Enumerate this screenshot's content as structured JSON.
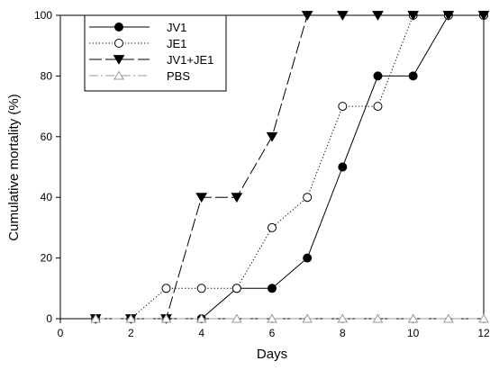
{
  "chart_data": {
    "type": "line",
    "title": "",
    "xlabel": "Days",
    "ylabel": "Cumulative mortality (%)",
    "xlim": [
      0,
      12
    ],
    "ylim": [
      0,
      100
    ],
    "xticks": [
      0,
      2,
      4,
      6,
      8,
      10,
      12
    ],
    "yticks": [
      0,
      20,
      40,
      60,
      80,
      100
    ],
    "grid": false,
    "legend_position": "top-left",
    "x": [
      1,
      2,
      3,
      4,
      5,
      6,
      7,
      8,
      9,
      10,
      11,
      12
    ],
    "series": [
      {
        "name": "JV1",
        "marker": "filled-circle",
        "line_style": "solid",
        "color": "#000000",
        "values": [
          0,
          0,
          0,
          0,
          10,
          10,
          20,
          50,
          80,
          80,
          100,
          100
        ]
      },
      {
        "name": "JE1",
        "marker": "open-circle",
        "line_style": "dotted",
        "color": "#000000",
        "values": [
          0,
          0,
          10,
          10,
          10,
          30,
          40,
          70,
          70,
          100,
          100,
          100
        ]
      },
      {
        "name": "JV1+JE1",
        "marker": "filled-triangle-down",
        "line_style": "long-dash",
        "color": "#000000",
        "values": [
          0,
          0,
          0,
          40,
          40,
          60,
          100,
          100,
          100,
          100,
          100,
          100
        ]
      },
      {
        "name": "PBS",
        "marker": "open-triangle-up",
        "line_style": "dash-dot",
        "color": "#999999",
        "values": [
          0,
          0,
          0,
          0,
          0,
          0,
          0,
          0,
          0,
          0,
          0,
          0
        ]
      }
    ]
  }
}
